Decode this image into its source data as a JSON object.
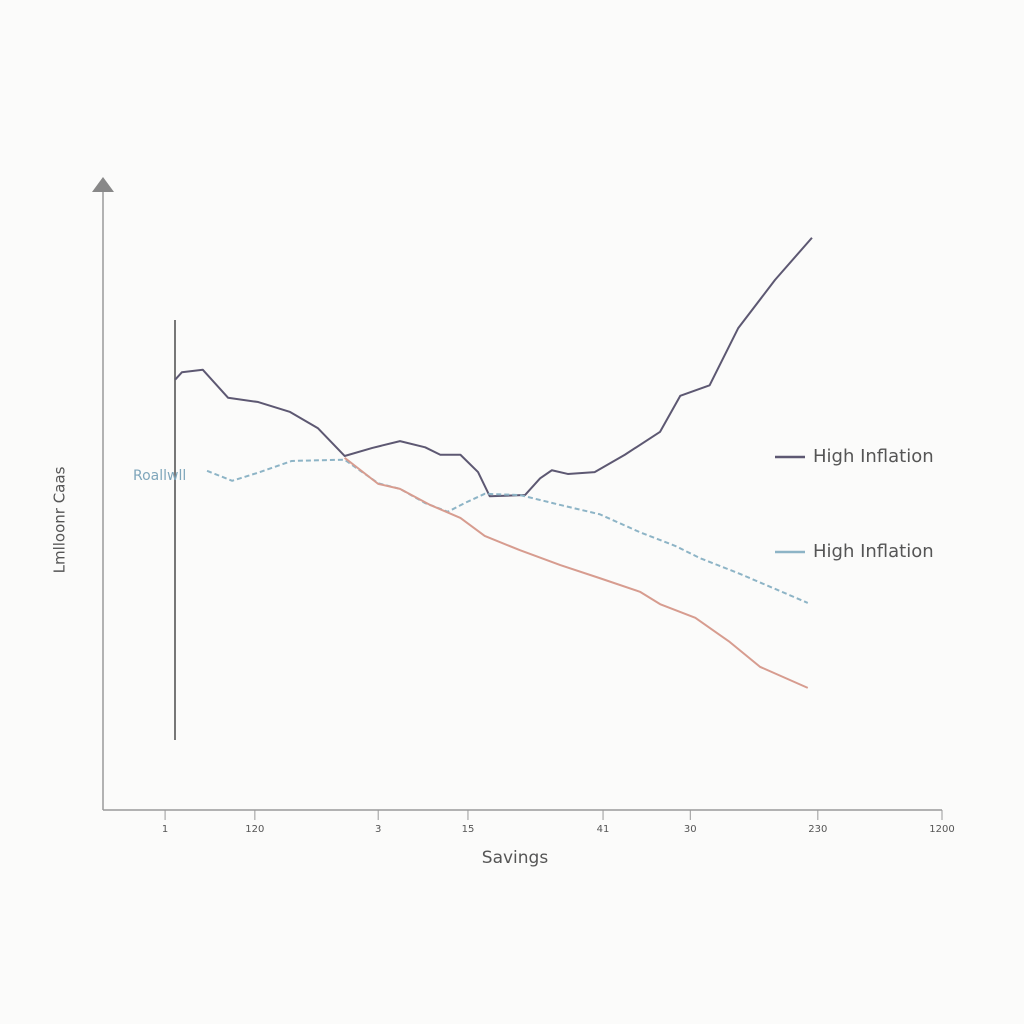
{
  "chart_data": {
    "type": "line",
    "y_label": "Lmlloonr Caas",
    "x_label": "Savings",
    "annotation": "Roallwll",
    "xlim": [
      0,
      100
    ],
    "ylim": [
      0,
      100
    ],
    "xticks": [
      {
        "value": 7.4,
        "label": "1"
      },
      {
        "value": 18.1,
        "label": "120"
      },
      {
        "value": 32.8,
        "label": "3"
      },
      {
        "value": 43.5,
        "label": "15"
      },
      {
        "value": 59.6,
        "label": "41"
      },
      {
        "value": 70.0,
        "label": "30"
      },
      {
        "value": 85.2,
        "label": "230"
      },
      {
        "value": 100,
        "label": "1200"
      }
    ],
    "grid": false,
    "legend": "right",
    "series": [
      {
        "name": "High Inflation",
        "color": "#5d5872",
        "dashed": false,
        "x": [
          8.6,
          9.4,
          11.9,
          14.9,
          18.5,
          22.3,
          25.6,
          28.8,
          32.1,
          35.4,
          38.4,
          40.2,
          42.6,
          44.7,
          46.1,
          50.3,
          52.1,
          53.5,
          55.4,
          58.6,
          62.2,
          66.4,
          68.8,
          72.3,
          75.7,
          80.1,
          84.5
        ],
        "values": [
          69.4,
          70.6,
          71.0,
          66.5,
          65.8,
          64.2,
          61.6,
          57.1,
          58.4,
          59.5,
          58.5,
          57.3,
          57.3,
          54.5,
          50.6,
          50.8,
          53.5,
          54.8,
          54.2,
          54.5,
          57.3,
          61.0,
          66.8,
          68.5,
          77.7,
          85.5,
          92.3
        ]
      },
      {
        "name": "High Inflation",
        "color": "#8db4c6",
        "dashed": true,
        "x": [
          12.4,
          15.4,
          18.7,
          22.5,
          28.8,
          32.8,
          35.4,
          38.4,
          41.1,
          43.1,
          45.5,
          49.7,
          54.5,
          59.2,
          64.0,
          68.2,
          71.2,
          75.9,
          84.0
        ],
        "values": [
          54.7,
          53.1,
          54.5,
          56.3,
          56.5,
          52.7,
          51.8,
          49.5,
          48.1,
          49.5,
          51.0,
          50.8,
          49.2,
          47.7,
          44.8,
          42.6,
          40.6,
          38.1,
          33.4
        ]
      },
      {
        "color": "#d79c8f",
        "dashed": false,
        "x": [
          28.8,
          32.8,
          35.4,
          39.0,
          42.6,
          45.5,
          49.7,
          54.5,
          59.2,
          64.0,
          66.4,
          70.6,
          74.7,
          78.3,
          84.0
        ],
        "values": [
          56.8,
          52.6,
          51.8,
          49.2,
          47.1,
          44.2,
          41.9,
          39.5,
          37.4,
          35.2,
          33.2,
          31.0,
          27.1,
          23.1,
          19.7
        ]
      }
    ]
  }
}
